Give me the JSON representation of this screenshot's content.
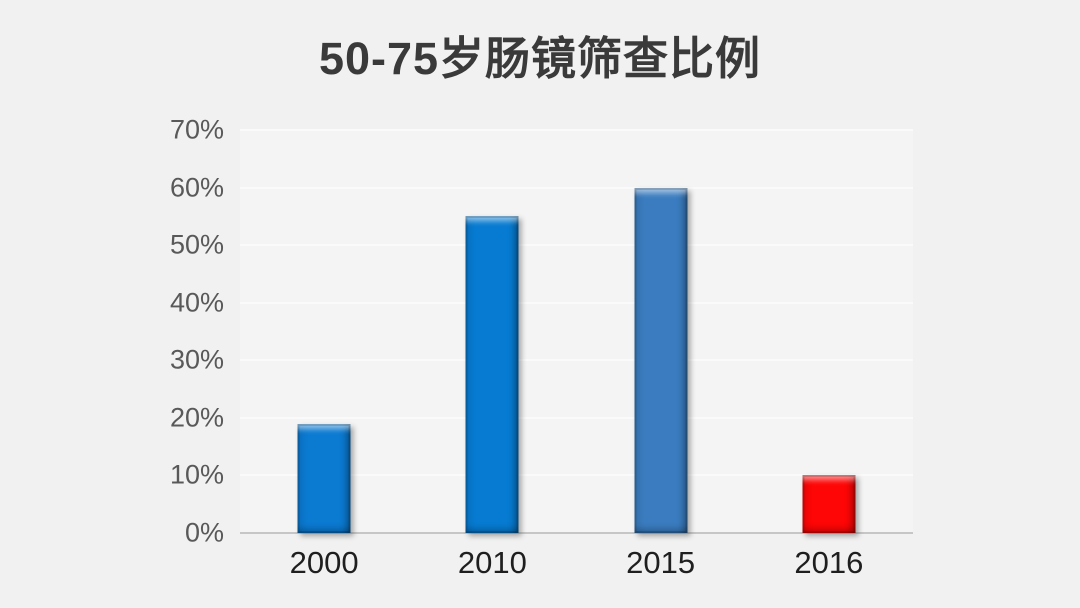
{
  "page": {
    "background_color": "#f1f1f1"
  },
  "chart_data": {
    "type": "bar",
    "title": "50-75岁肠镜筛查比例",
    "categories": [
      "2000",
      "2010",
      "2015",
      "2016"
    ],
    "values": [
      19,
      55,
      60,
      10
    ],
    "value_unit": "%",
    "xlabel": "",
    "ylabel": "",
    "ylim": [
      0,
      70
    ],
    "yticks": [
      0,
      10,
      20,
      30,
      40,
      50,
      60,
      70
    ],
    "ytick_labels": [
      "0%",
      "10%",
      "20%",
      "30%",
      "40%",
      "50%",
      "60%",
      "70%"
    ],
    "grid": true,
    "legend": false,
    "bar_colors": [
      "#0b7ad1",
      "#077bd1",
      "#3a7cbf",
      "#fe0606"
    ],
    "title_color": "#3a3a3a",
    "ytick_color": "#595959",
    "xtick_color": "#1f1f1f",
    "gridline_color": "#fafafa",
    "axis_line_color": "#c6c6c6"
  }
}
